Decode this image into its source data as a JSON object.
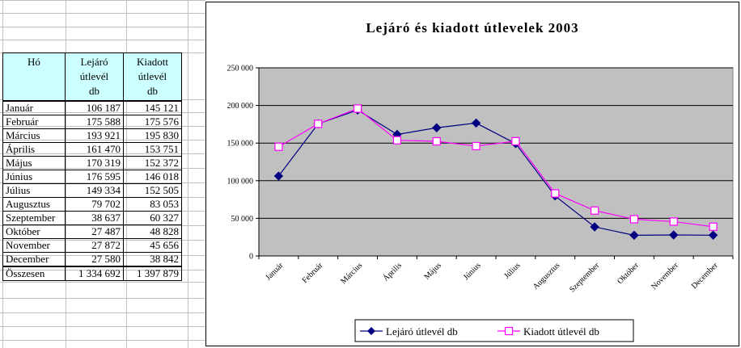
{
  "table": {
    "headers": [
      "Hó",
      "Lejáró útlevél db",
      "Kiadott útlevél db"
    ],
    "header_lines": [
      [
        "Hó"
      ],
      [
        "Lejáró",
        "útlevél",
        "db"
      ],
      [
        "Kiadott",
        "útlevél",
        "db"
      ]
    ],
    "rows": [
      {
        "month": "Január",
        "lejaro": "106 187",
        "kiadott": "145 121"
      },
      {
        "month": "Február",
        "lejaro": "175 588",
        "kiadott": "175 576"
      },
      {
        "month": "Március",
        "lejaro": "193 921",
        "kiadott": "195 830"
      },
      {
        "month": "Április",
        "lejaro": "161 470",
        "kiadott": "153 751"
      },
      {
        "month": "Május",
        "lejaro": "170 319",
        "kiadott": "152 372"
      },
      {
        "month": "Június",
        "lejaro": "176 595",
        "kiadott": "146 018"
      },
      {
        "month": "Július",
        "lejaro": "149 334",
        "kiadott": "152 505"
      },
      {
        "month": "Augusztus",
        "lejaro": "79 702",
        "kiadott": "83 053"
      },
      {
        "month": "Szeptember",
        "lejaro": "38 637",
        "kiadott": "60 327"
      },
      {
        "month": "Október",
        "lejaro": "27 487",
        "kiadott": "48 828"
      },
      {
        "month": "November",
        "lejaro": "27 872",
        "kiadott": "45 656"
      },
      {
        "month": "December",
        "lejaro": "27 580",
        "kiadott": "38 842"
      }
    ],
    "total": {
      "month": "Összesen",
      "lejaro": "1 334 692",
      "kiadott": "1 397 879"
    }
  },
  "chart_data": {
    "type": "line",
    "title": "Lejáró és kiadott útlevelek 2003",
    "categories": [
      "Január",
      "Február",
      "Március",
      "Április",
      "Május",
      "Június",
      "Július",
      "Augusztus",
      "Szeptember",
      "Október",
      "November",
      "December"
    ],
    "series": [
      {
        "name": "Lejáró útlevél db",
        "color": "#000080",
        "marker": "diamond",
        "values": [
          106187,
          175588,
          193921,
          161470,
          170319,
          176595,
          149334,
          79702,
          38637,
          27487,
          27872,
          27580
        ]
      },
      {
        "name": "Kiadott útlevél db",
        "color": "#ff00ff",
        "marker": "square",
        "values": [
          145121,
          175576,
          195830,
          153751,
          152372,
          146018,
          152505,
          83053,
          60327,
          48828,
          45656,
          38842
        ]
      }
    ],
    "ylim": [
      0,
      250000
    ],
    "yticks": [
      0,
      50000,
      100000,
      150000,
      200000,
      250000
    ],
    "ytick_labels": [
      "0",
      "50 000",
      "100 000",
      "150 000",
      "200 000",
      "250 000"
    ],
    "grid": true,
    "plot_background": "#c0c0c0",
    "legend": "bottom"
  }
}
